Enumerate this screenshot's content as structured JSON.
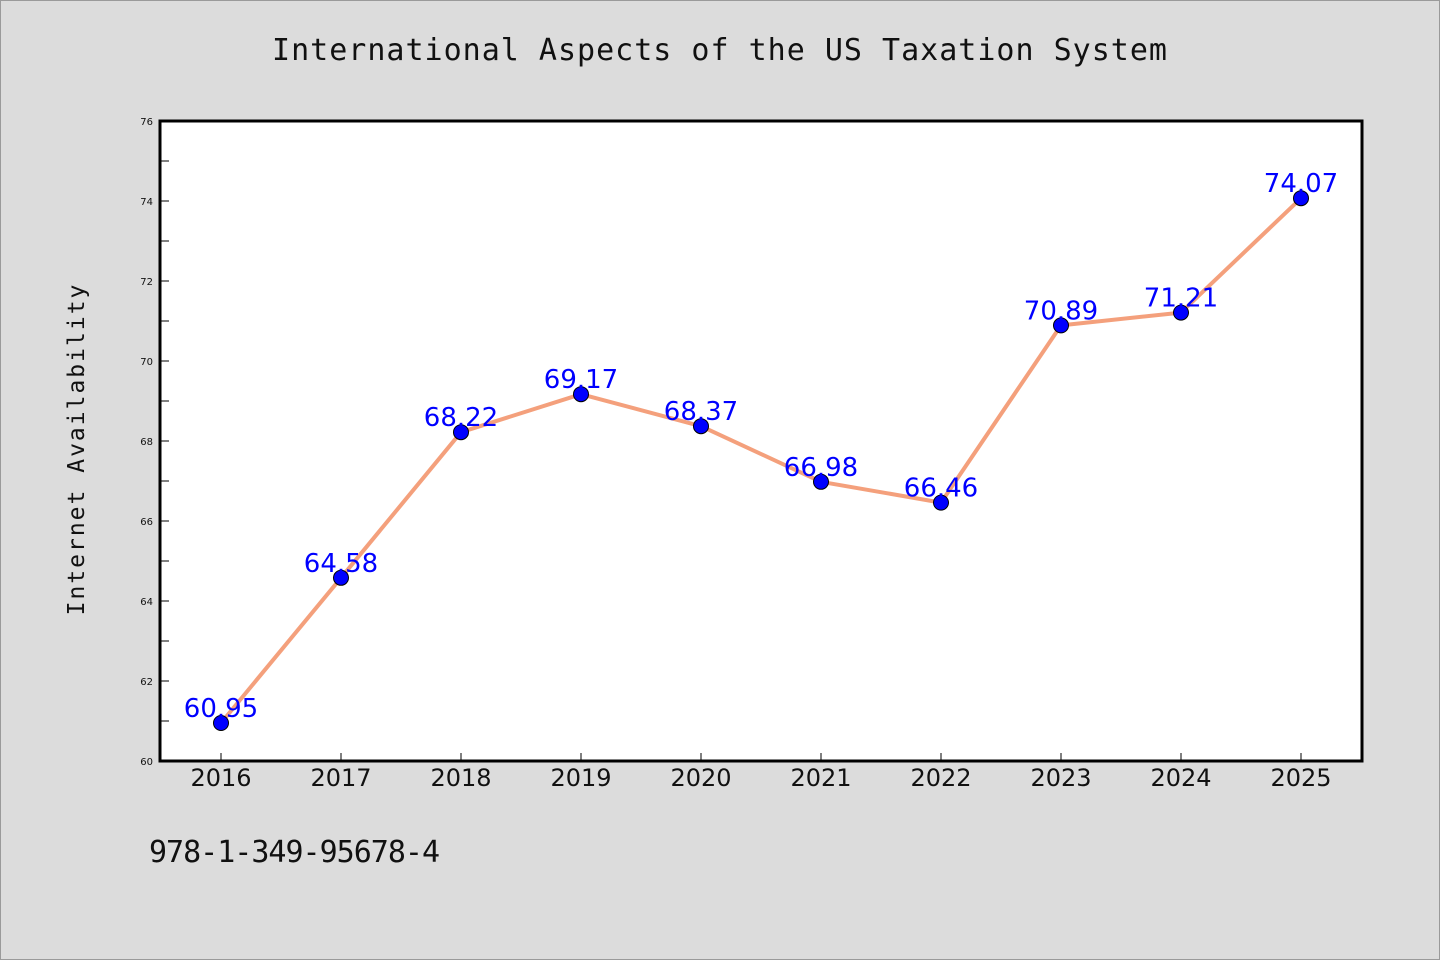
{
  "chart_data": {
    "type": "line",
    "title": "International Aspects of the US Taxation System",
    "xlabel": "",
    "ylabel": "Internet Availability",
    "categories": [
      "2016",
      "2017",
      "2018",
      "2019",
      "2020",
      "2021",
      "2022",
      "2023",
      "2024",
      "2025"
    ],
    "series": [
      {
        "values": [
          60.95,
          64.58,
          68.22,
          69.17,
          68.37,
          66.98,
          66.46,
          70.89,
          71.21,
          74.07
        ]
      }
    ],
    "data_labels": [
      "60.95",
      "64.58",
      "68.22",
      "69.17",
      "68.37",
      "66.98",
      "66.46",
      "70.89",
      "71.21",
      "74.07"
    ],
    "ylim": [
      60,
      76
    ],
    "yticks": [
      60,
      62,
      64,
      66,
      68,
      70,
      72,
      74,
      76
    ],
    "grid": false,
    "legend": "none",
    "colors": {
      "line": "#f4a07c",
      "marker": "#0000ff",
      "data_label": "#0000ff",
      "background": "#dcdcdc",
      "plot_area": "#ffffff"
    }
  },
  "footer": {
    "isbn": "978-1-349-95678-4"
  }
}
